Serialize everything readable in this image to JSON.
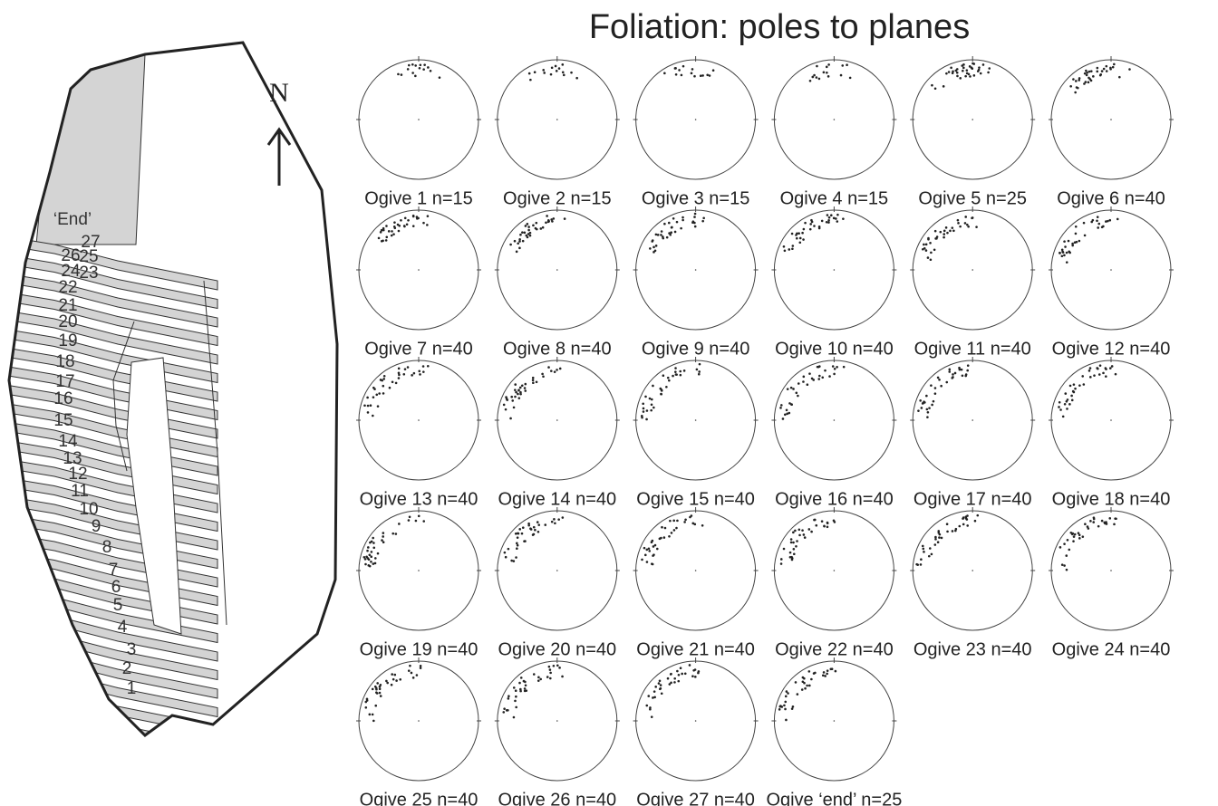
{
  "title": "Foliation: poles to planes",
  "north": "N",
  "map": {
    "labels": [
      "‘End’",
      "27",
      "26",
      "25",
      "24",
      "23",
      "22",
      "21",
      "20",
      "19",
      "18",
      "17",
      "16",
      "15",
      "14",
      "13",
      "12",
      "11",
      "10",
      "9",
      "8",
      "7",
      "6",
      "5",
      "4",
      "3",
      "2",
      "1"
    ]
  },
  "stereonets": [
    {
      "label": "Ogive 1 n=15"
    },
    {
      "label": "Ogive 2 n=15"
    },
    {
      "label": "Ogive 3 n=15"
    },
    {
      "label": "Ogive 4 n=15"
    },
    {
      "label": "Ogive 5 n=25"
    },
    {
      "label": "Ogive 6 n=40"
    },
    {
      "label": "Ogive 7 n=40"
    },
    {
      "label": "Ogive 8 n=40"
    },
    {
      "label": "Ogive 9 n=40"
    },
    {
      "label": "Ogive 10 n=40"
    },
    {
      "label": "Ogive 11 n=40"
    },
    {
      "label": "Ogive 12 n=40"
    },
    {
      "label": "Ogive 13 n=40"
    },
    {
      "label": "Ogive 14 n=40"
    },
    {
      "label": "Ogive 15 n=40"
    },
    {
      "label": "Ogive 16 n=40"
    },
    {
      "label": "Ogive 17 n=40"
    },
    {
      "label": "Ogive 18 n=40"
    },
    {
      "label": "Ogive 19 n=40"
    },
    {
      "label": "Ogive 20 n=40"
    },
    {
      "label": "Ogive 21 n=40"
    },
    {
      "label": "Ogive 22 n=40"
    },
    {
      "label": "Ogive 23 n=40"
    },
    {
      "label": "Ogive 24 n=40"
    },
    {
      "label": "Ogive 25 n=40"
    },
    {
      "label": "Ogive 26 n=40"
    },
    {
      "label": "Ogive 27 n=40"
    },
    {
      "label": "Ogive ‘end’ n=25"
    }
  ]
}
